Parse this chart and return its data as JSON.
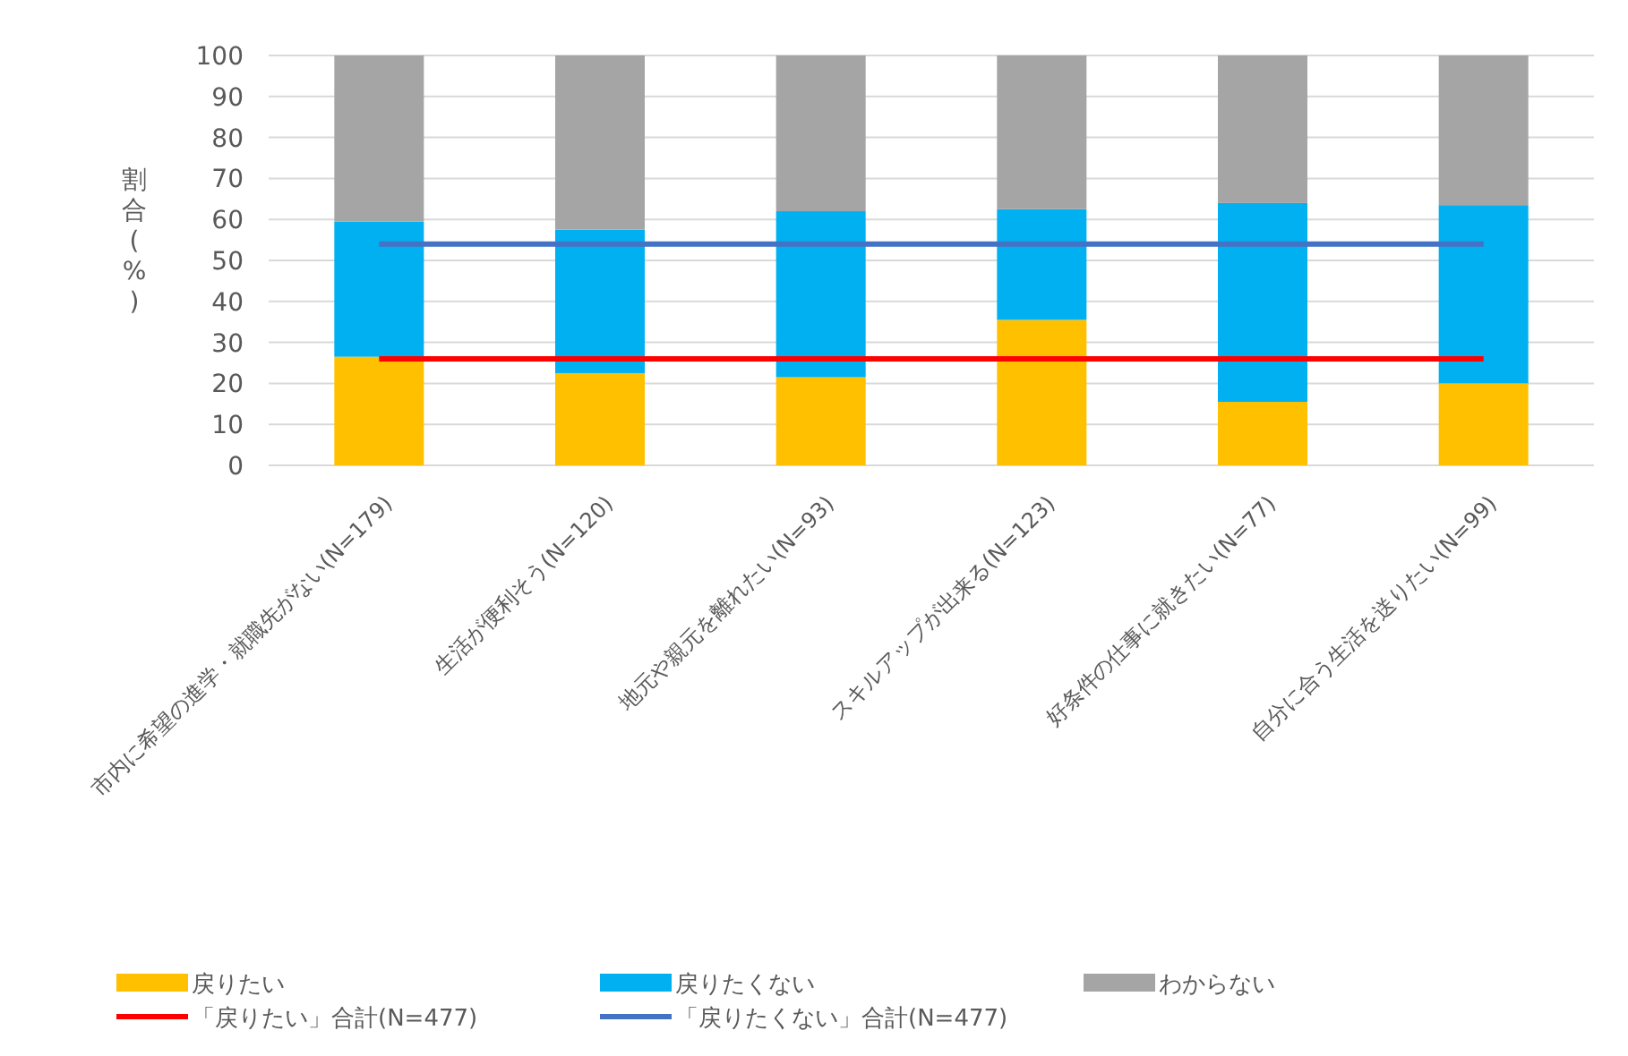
{
  "chart_data": {
    "type": "bar",
    "stacked": true,
    "ylabel": "割合(%)",
    "categories": [
      "市内に希望の進学・就職先がない(N=179)",
      "生活が便利そう(N=120)",
      "地元や親元を離れたい(N=93)",
      "スキルアップが出来る(N=123)",
      "好条件の仕事に就きたい(N=77)",
      "自分に合う生活を送りたい(N=99)"
    ],
    "series": [
      {
        "name": "戻りたい",
        "color": "#ffc000",
        "values": [
          26.5,
          22.5,
          21.5,
          35.5,
          15.5,
          20
        ]
      },
      {
        "name": "戻りたくない",
        "color": "#00b0f0",
        "values": [
          33,
          35,
          40.5,
          27,
          48.5,
          43.5
        ]
      },
      {
        "name": "わからない",
        "color": "#a5a5a5",
        "values": [
          40.5,
          42.5,
          38,
          37.5,
          36,
          36.5
        ]
      },
      {
        "name": "「戻りたい」合計(N=477)",
        "type": "line",
        "color": "#ff0000",
        "values": [
          26,
          26,
          26,
          26,
          26,
          26
        ]
      },
      {
        "name": "「戻りたくない」合計(N=477)",
        "type": "line",
        "color": "#4472c4",
        "values": [
          54,
          54,
          54,
          54,
          54,
          54
        ]
      }
    ],
    "ylim": [
      0,
      100
    ],
    "yticks": [
      0,
      10,
      20,
      30,
      40,
      50,
      60,
      70,
      80,
      90,
      100
    ],
    "grid": "y",
    "legend": "bottom"
  }
}
